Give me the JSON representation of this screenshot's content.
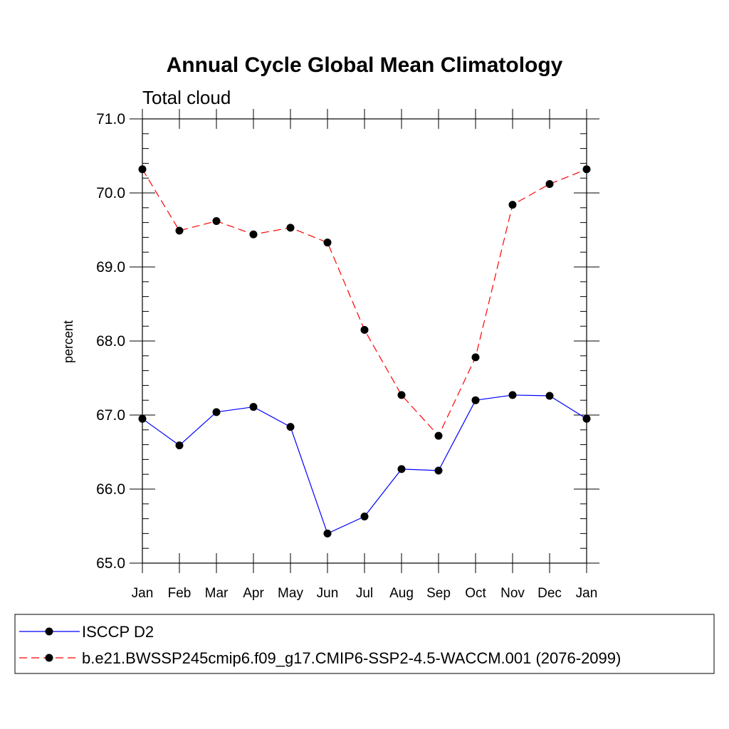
{
  "chart_data": {
    "type": "line",
    "title": "Annual Cycle Global Mean Climatology",
    "subtitle": "Total cloud",
    "ylabel": "percent",
    "xlabel": "",
    "categories": [
      "Jan",
      "Feb",
      "Mar",
      "Apr",
      "May",
      "Jun",
      "Jul",
      "Aug",
      "Sep",
      "Oct",
      "Nov",
      "Dec",
      "Jan"
    ],
    "ylim": [
      65.0,
      71.0
    ],
    "yticks": [
      "65.0",
      "66.0",
      "67.0",
      "68.0",
      "69.0",
      "70.0",
      "71.0"
    ],
    "legend_position": "bottom",
    "series": [
      {
        "name": "ISCCP D2",
        "color": "#0000ff",
        "line_style": "solid",
        "values": [
          66.95,
          66.59,
          67.04,
          67.11,
          66.84,
          65.4,
          65.63,
          66.27,
          66.25,
          67.2,
          67.27,
          67.26,
          66.95
        ]
      },
      {
        "name": "b.e21.BWSSP245cmip6.f09_g17.CMIP6-SSP2-4.5-WACCM.001 (2076-2099)",
        "color": "#ff0000",
        "line_style": "dashed",
        "values": [
          70.32,
          69.49,
          69.62,
          69.44,
          69.53,
          69.33,
          68.15,
          67.27,
          66.72,
          67.78,
          69.84,
          70.12,
          70.32
        ]
      }
    ]
  }
}
